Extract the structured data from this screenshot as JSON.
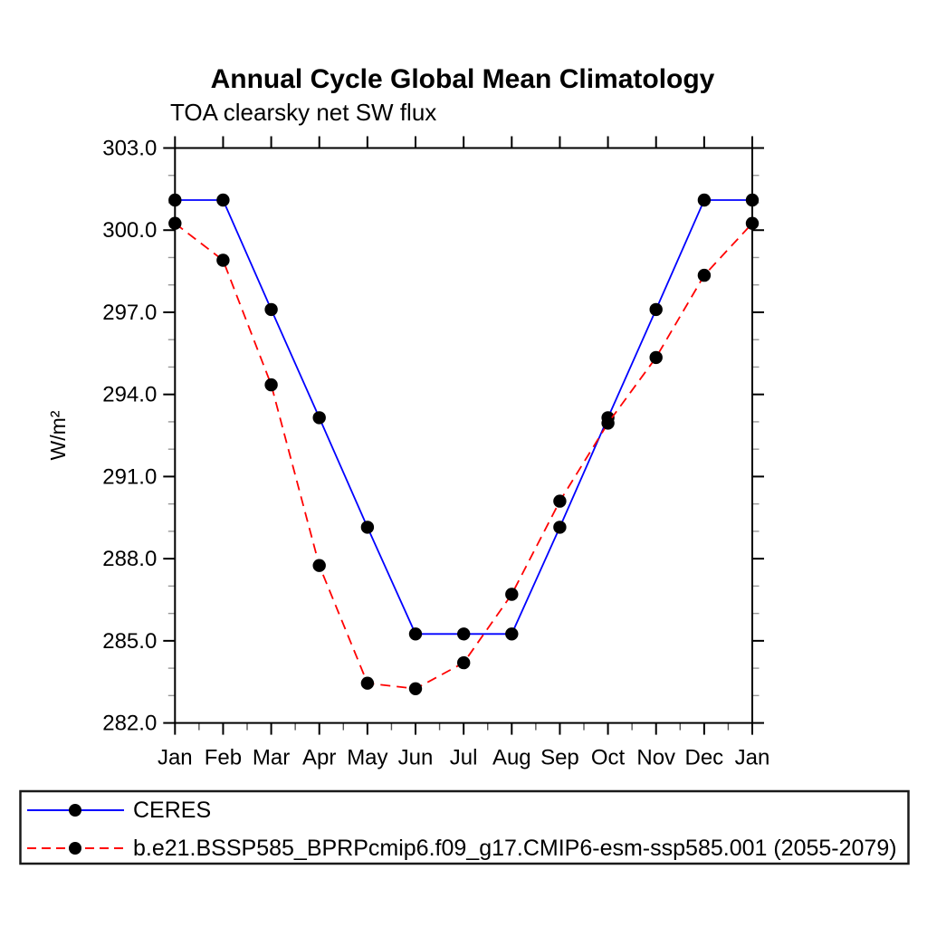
{
  "chart_data": {
    "type": "line",
    "title": "Annual Cycle Global Mean Climatology",
    "subtitle": "TOA clearsky net SW flux",
    "ylabel": "W/m²",
    "xlabel": "",
    "categories": [
      "Jan",
      "Feb",
      "Mar",
      "Apr",
      "May",
      "Jun",
      "Jul",
      "Aug",
      "Sep",
      "Oct",
      "Nov",
      "Dec",
      "Jan"
    ],
    "ylim": [
      282.0,
      303.0
    ],
    "y_major_step": 3.0,
    "y_minor_step": 1.0,
    "y_tick_format_decimals": 1,
    "grid": false,
    "legend_position": "bottom-box",
    "marker": "filled-circle",
    "marker_color": "#000000",
    "axis_color": "#000000",
    "minor_tick_color": "#999999",
    "series": [
      {
        "name": "CERES",
        "color": "#0000ff",
        "style": "solid",
        "values": [
          301.1,
          301.1,
          297.1,
          293.15,
          289.15,
          285.25,
          285.25,
          285.25,
          289.15,
          293.15,
          297.1,
          301.1,
          301.1
        ]
      },
      {
        "name": "b.e21.BSSP585_BPRPcmip6.f09_g17.CMIP6-esm-ssp585.001 (2055-2079)",
        "color": "#ff0000",
        "style": "dashed",
        "values": [
          300.25,
          298.9,
          294.35,
          287.75,
          283.45,
          283.25,
          284.2,
          286.7,
          290.1,
          292.95,
          295.35,
          298.35,
          300.25
        ]
      }
    ]
  }
}
